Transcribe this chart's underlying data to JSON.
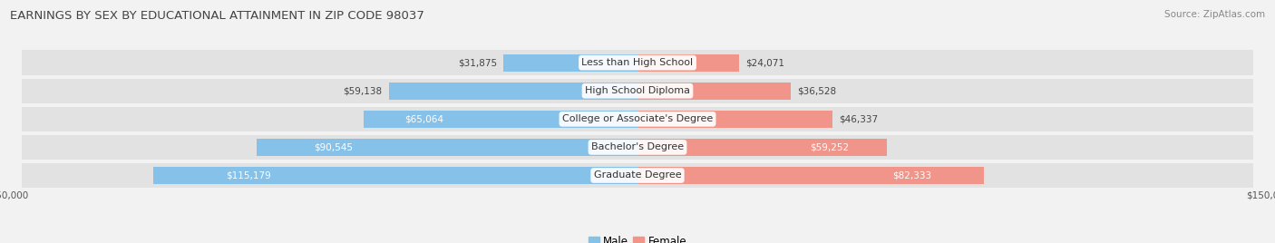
{
  "title": "EARNINGS BY SEX BY EDUCATIONAL ATTAINMENT IN ZIP CODE 98037",
  "source": "Source: ZipAtlas.com",
  "categories": [
    "Less than High School",
    "High School Diploma",
    "College or Associate's Degree",
    "Bachelor's Degree",
    "Graduate Degree"
  ],
  "male_values": [
    31875,
    59138,
    65064,
    90545,
    115179
  ],
  "female_values": [
    24071,
    36528,
    46337,
    59252,
    82333
  ],
  "male_color": "#85C1E9",
  "female_color": "#F1948A",
  "max_val": 150000,
  "background_color": "#f2f2f2",
  "row_bg_color": "#e2e2e2",
  "title_fontsize": 9.5,
  "source_fontsize": 7.5,
  "label_fontsize": 8,
  "value_fontsize": 7.5,
  "legend_fontsize": 8.5
}
